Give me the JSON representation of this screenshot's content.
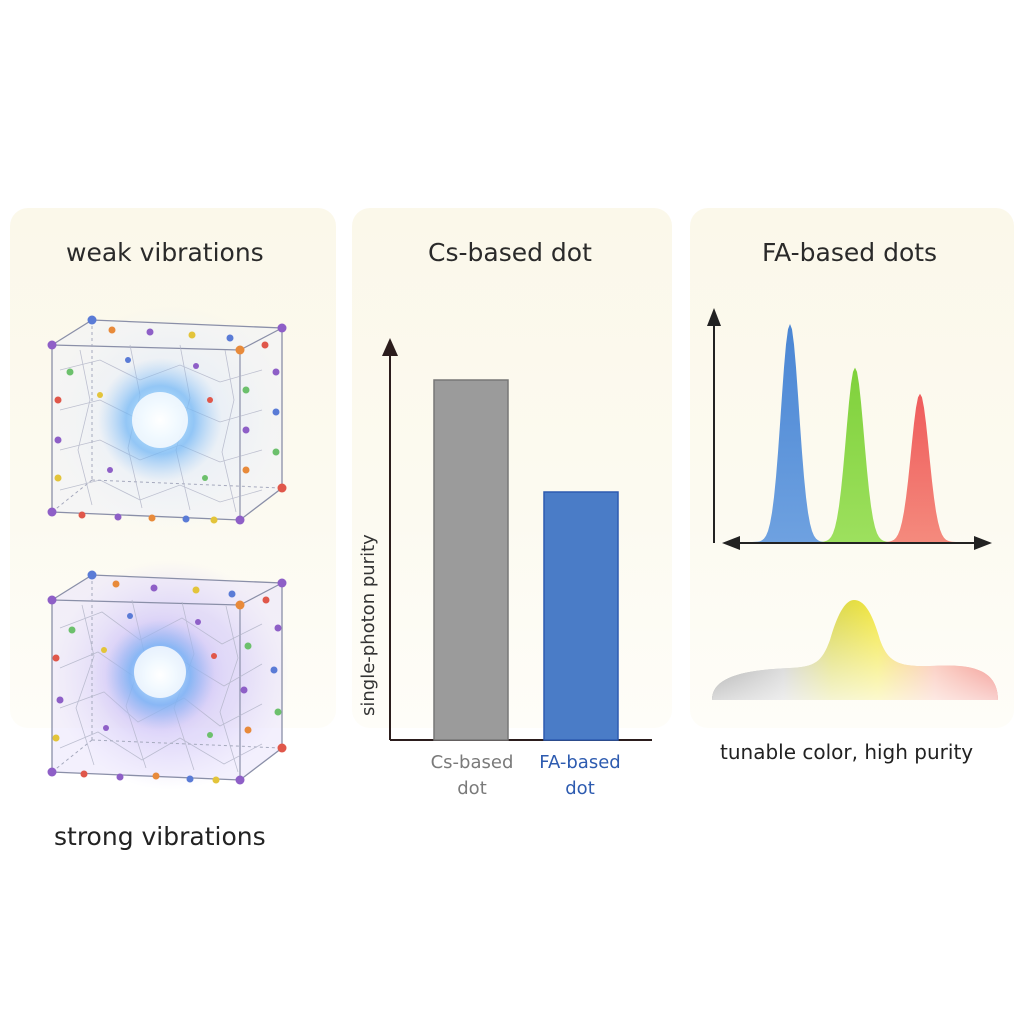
{
  "panels": {
    "left": {
      "title": "weak vibrations",
      "bottom_caption": "strong vibrations"
    },
    "middle": {
      "title": "Cs-based dot",
      "chart_ylabel": "single-photon purity",
      "bar1_label_line1": "Cs-based",
      "bar1_label_line2": "dot",
      "bar2_label_line1": "FA-based",
      "bar2_label_line2": "dot"
    },
    "right": {
      "title": "FA-based dots",
      "caption": "tunable color, high purity"
    }
  },
  "colors": {
    "cs_bar": "#9b9b9b",
    "fa_bar": "#4a7cc7",
    "fa_text": "#2d5bb0",
    "peak_blue": "#4a86d4",
    "peak_green": "#7fd13b",
    "peak_red": "#ef5b5b"
  },
  "chart_data": [
    {
      "type": "bar",
      "title": "Cs-based dot",
      "categories": [
        "Cs-based dot",
        "FA-based dot"
      ],
      "values": [
        0.9,
        0.62
      ],
      "ylabel": "single-photon purity",
      "xlabel": "",
      "ylim": [
        0,
        1
      ]
    },
    {
      "type": "line",
      "title": "FA-based dots",
      "series": [
        {
          "name": "blue",
          "center": 1.0,
          "height": 1.0
        },
        {
          "name": "green",
          "center": 2.0,
          "height": 0.8
        },
        {
          "name": "red",
          "center": 3.0,
          "height": 0.68
        }
      ],
      "xlabel": "",
      "ylabel": ""
    }
  ]
}
